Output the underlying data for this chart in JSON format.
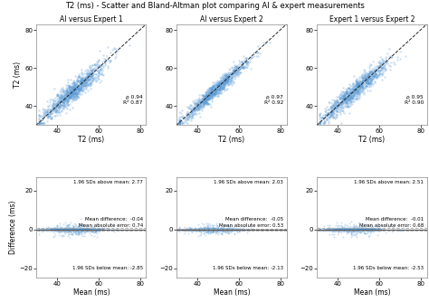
{
  "title": "T2 (ms) - Scatter and Bland-Altman plot comparing AI & expert measurements",
  "scatter_titles": [
    "AI versus Expert 1",
    "AI versus Expert 2",
    "Expert 1 versus Expert 2"
  ],
  "scatter_xlabel": "T2 (ms)",
  "scatter_ylabel": "T2 (ms)",
  "ba_xlabel": "Mean (ms)",
  "ba_ylabel": "Difference (ms)",
  "scatter_xlim": [
    30,
    83
  ],
  "scatter_ylim": [
    30,
    83
  ],
  "ba_xlim": [
    30,
    83
  ],
  "ba_ylim": [
    -25,
    27
  ],
  "scatter_xticks": [
    40,
    60,
    80
  ],
  "scatter_yticks": [
    40,
    60,
    80
  ],
  "ba_xticks": [
    40,
    60,
    80
  ],
  "ba_yticks": [
    -20,
    0,
    20
  ],
  "rho": [
    0.94,
    0.97,
    0.95
  ],
  "r2": [
    0.87,
    0.92,
    0.9
  ],
  "mean_diff": [
    -0.04,
    -0.05,
    -0.01
  ],
  "mae": [
    0.74,
    0.53,
    0.68
  ],
  "sd_above": [
    2.77,
    2.03,
    2.51
  ],
  "sd_below": [
    -2.85,
    -2.13,
    -2.53
  ],
  "dot_color": "#5b9bd5",
  "dot_alpha_scatter": 0.3,
  "dot_alpha_ba": 0.3,
  "dot_size_scatter": 3,
  "dot_size_ba": 2,
  "diag_color": "#222222",
  "mean_line_color": "#555555",
  "sd_line_color": "#aaaaaa",
  "background_color": "#ffffff",
  "n_scatter": 1000,
  "n_ba": 1000,
  "seed": 42
}
